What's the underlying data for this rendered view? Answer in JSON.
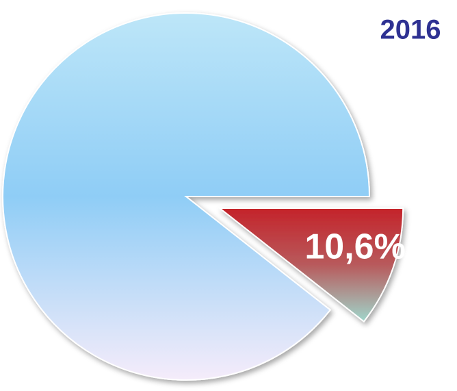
{
  "chart_data": {
    "type": "pie",
    "title": "2016",
    "values": [
      10.6,
      89.4
    ],
    "value_labels": [
      "10,6%",
      null
    ],
    "explode": [
      true,
      false
    ],
    "colors": [
      [
        "#c4232a",
        "#b85a5c",
        "#9fd6cb"
      ],
      [
        "#bde6f8",
        "#8fcdf6",
        "#f5ecfa"
      ]
    ]
  }
}
